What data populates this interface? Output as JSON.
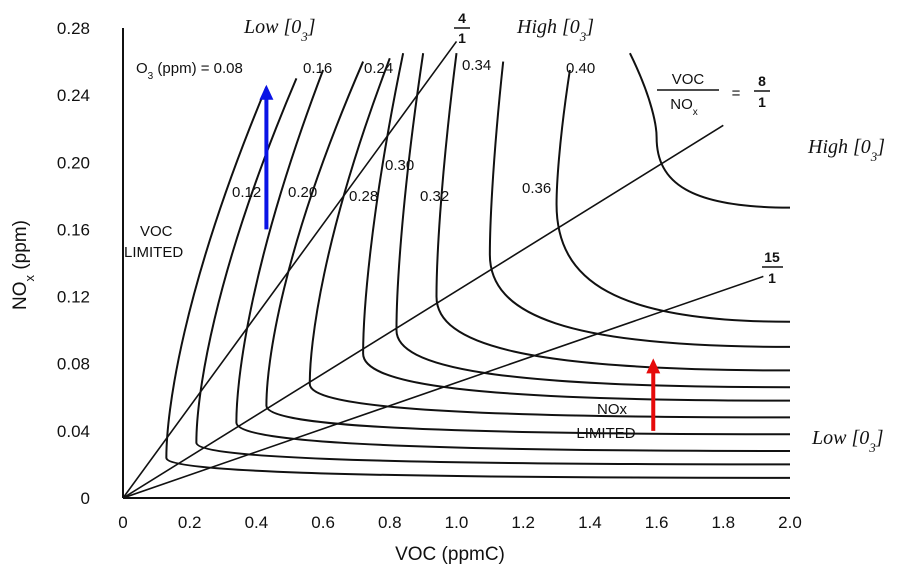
{
  "chart_data": {
    "type": "line",
    "title": "",
    "xlabel": "VOC (ppmC)",
    "ylabel_main": "NO",
    "ylabel_sub": "x",
    "ylabel_unit": " (ppm)",
    "xlim": [
      0,
      2.0
    ],
    "ylim": [
      0,
      0.28
    ],
    "x_ticks": [
      "0",
      "0.2",
      "0.4",
      "0.6",
      "0.8",
      "1.0",
      "1.2",
      "1.4",
      "1.6",
      "1.8",
      "2.0"
    ],
    "y_ticks": [
      "0",
      "0.04",
      "0.08",
      "0.12",
      "0.16",
      "0.20",
      "0.24",
      "0.28"
    ],
    "o3_prefix_main": "O",
    "o3_prefix_sub": "3",
    "o3_prefix_rest": " (ppm) = 0.08",
    "isopleth_labels": [
      "0.16",
      "0.24",
      "0.34",
      "0.40",
      "0.12",
      "0.20",
      "0.28",
      "0.30",
      "0.32",
      "0.36"
    ],
    "isopleths": [
      {
        "o3": 0.08,
        "knee": [
          0.13,
          0.024
        ],
        "upper_end": [
          0.43,
          0.245
        ],
        "lower_end": [
          2.0,
          0.012
        ]
      },
      {
        "o3": 0.12,
        "knee": [
          0.22,
          0.033
        ],
        "upper_end": [
          0.52,
          0.25
        ],
        "lower_end": [
          2.0,
          0.02
        ]
      },
      {
        "o3": 0.16,
        "knee": [
          0.34,
          0.045
        ],
        "upper_end": [
          0.6,
          0.255
        ],
        "lower_end": [
          2.0,
          0.028
        ]
      },
      {
        "o3": 0.2,
        "knee": [
          0.43,
          0.055
        ],
        "upper_end": [
          0.72,
          0.26
        ],
        "lower_end": [
          2.0,
          0.038
        ]
      },
      {
        "o3": 0.24,
        "knee": [
          0.56,
          0.068
        ],
        "upper_end": [
          0.8,
          0.262
        ],
        "lower_end": [
          2.0,
          0.048
        ]
      },
      {
        "o3": 0.28,
        "knee": [
          0.72,
          0.086
        ],
        "upper_end": [
          0.84,
          0.265
        ],
        "lower_end": [
          2.0,
          0.058
        ]
      },
      {
        "o3": 0.3,
        "knee": [
          0.82,
          0.1
        ],
        "upper_end": [
          0.9,
          0.265
        ],
        "lower_end": [
          2.0,
          0.066
        ]
      },
      {
        "o3": 0.32,
        "knee": [
          0.94,
          0.12
        ],
        "upper_end": [
          1.0,
          0.265
        ],
        "lower_end": [
          2.0,
          0.076
        ]
      },
      {
        "o3": 0.34,
        "knee": [
          1.1,
          0.145
        ],
        "upper_end": [
          1.14,
          0.26
        ],
        "lower_end": [
          2.0,
          0.09
        ]
      },
      {
        "o3": 0.36,
        "knee": [
          1.3,
          0.175
        ],
        "upper_end": [
          1.34,
          0.255
        ],
        "lower_end": [
          2.0,
          0.105
        ]
      },
      {
        "o3": 0.4,
        "knee": [
          1.6,
          0.215
        ],
        "upper_end": [
          1.52,
          0.265
        ],
        "lower_end": [
          2.0,
          0.173
        ]
      }
    ],
    "ratio_lines": [
      {
        "label_num": "4",
        "label_den": "1",
        "end": [
          1.0,
          0.272
        ]
      },
      {
        "label_num": "8",
        "label_den": "1",
        "end": [
          1.8,
          0.222
        ]
      },
      {
        "label_num": "15",
        "label_den": "1",
        "end": [
          1.92,
          0.132
        ]
      }
    ],
    "ratio_label_voc": "VOC",
    "ratio_label_nox_main": "NO",
    "ratio_label_nox_sub": "x",
    "ratio_label_eq": "=",
    "regions": {
      "voc_limited_1": "VOC",
      "voc_limited_2": "LIMITED",
      "nox_limited_1": "NOx",
      "nox_limited_2": "LIMITED"
    },
    "annotations": {
      "low_top_main": "Low [0",
      "low_top_sub": "3",
      "low_top_close": "]",
      "high_top_main": "High [0",
      "high_top_sub": "3",
      "high_top_close": "]",
      "high_right_main": "High [0",
      "high_right_sub": "3",
      "high_right_close": "]",
      "low_right_main": "Low [0",
      "low_right_sub": "3",
      "low_right_close": "]"
    },
    "arrows": [
      {
        "color": "#0a14e6",
        "from": [
          0.43,
          0.16
        ],
        "to": [
          0.43,
          0.245
        ]
      },
      {
        "color": "#e60a0a",
        "from": [
          1.59,
          0.04
        ],
        "to": [
          1.59,
          0.082
        ]
      }
    ]
  }
}
